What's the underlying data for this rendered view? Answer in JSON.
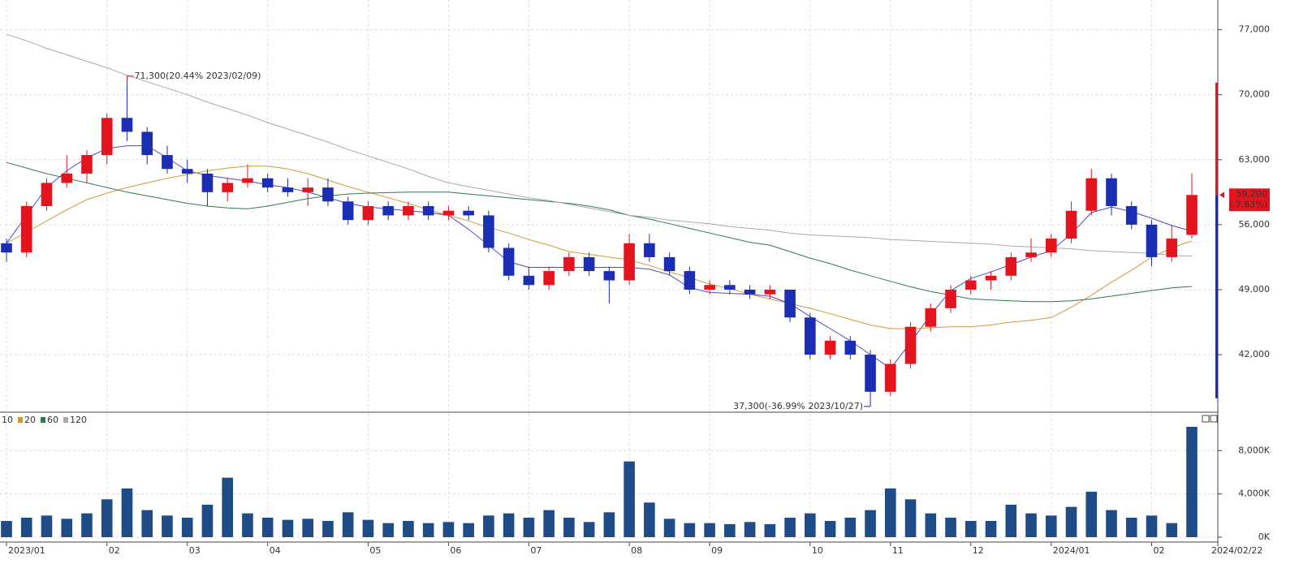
{
  "chart_data": {
    "type": "candlestick",
    "categories": [
      "2023/01",
      null,
      null,
      null,
      null,
      "02",
      null,
      null,
      null,
      "03",
      null,
      null,
      null,
      "04",
      null,
      null,
      null,
      null,
      "05",
      null,
      null,
      null,
      "06",
      null,
      null,
      null,
      "07",
      null,
      null,
      null,
      null,
      "08",
      null,
      null,
      null,
      "09",
      null,
      null,
      null,
      null,
      "10",
      null,
      null,
      null,
      "11",
      null,
      null,
      null,
      "12",
      null,
      null,
      null,
      "2024/01",
      null,
      null,
      null,
      null,
      "02",
      null,
      "2024/02/22"
    ],
    "open": [
      54000,
      53000,
      58000,
      60500,
      61500,
      63500,
      67500,
      66000,
      63500,
      62000,
      61500,
      59500,
      60500,
      61000,
      60000,
      59500,
      60000,
      58500,
      56500,
      58000,
      57000,
      58000,
      57000,
      57500,
      57000,
      53500,
      50500,
      49500,
      51000,
      52500,
      51000,
      50000,
      54000,
      52500,
      51000,
      49000,
      49500,
      49000,
      48500,
      49000,
      46000,
      42000,
      43500,
      42000,
      38000,
      41000,
      45000,
      47000,
      49000,
      50000,
      50500,
      52500,
      53000,
      54500,
      57500,
      61000,
      58000,
      56000,
      52500,
      54900
    ],
    "high": [
      54500,
      58500,
      61000,
      63500,
      64000,
      68000,
      71300,
      66500,
      64500,
      63000,
      62000,
      61000,
      62500,
      61500,
      61000,
      61000,
      61000,
      59000,
      58500,
      58500,
      58500,
      58500,
      58000,
      58000,
      57500,
      54000,
      51500,
      51500,
      53000,
      53000,
      51500,
      55000,
      55000,
      53000,
      51500,
      50000,
      50000,
      49500,
      49500,
      49000,
      46500,
      44000,
      44000,
      42500,
      41500,
      45500,
      47500,
      49500,
      50500,
      51000,
      53000,
      54500,
      55000,
      58500,
      62000,
      61500,
      58500,
      56500,
      56000,
      61500
    ],
    "low": [
      52000,
      52500,
      57500,
      60000,
      60500,
      62500,
      65000,
      62500,
      61500,
      60500,
      58000,
      58500,
      60000,
      59500,
      59000,
      58000,
      58000,
      56000,
      56000,
      56500,
      56500,
      56500,
      56500,
      56500,
      53000,
      50000,
      49000,
      49000,
      50500,
      50500,
      47500,
      49500,
      52000,
      50500,
      48500,
      48500,
      48500,
      48000,
      48000,
      45500,
      41500,
      41500,
      41500,
      37300,
      37500,
      40500,
      44500,
      46500,
      48500,
      49000,
      50000,
      52000,
      52500,
      54000,
      57000,
      57000,
      55500,
      51500,
      52000,
      54500
    ],
    "close": [
      53000,
      58000,
      60500,
      61500,
      63500,
      67500,
      66000,
      63500,
      62000,
      61500,
      59500,
      60500,
      61000,
      60000,
      59500,
      60000,
      58500,
      56500,
      58000,
      57000,
      58000,
      57000,
      57500,
      57000,
      53500,
      50500,
      49500,
      51000,
      52500,
      51000,
      50000,
      54000,
      52500,
      51000,
      49000,
      49500,
      49000,
      48500,
      49000,
      46000,
      42000,
      43500,
      42000,
      38000,
      41000,
      45000,
      47000,
      49000,
      50000,
      50500,
      52500,
      53000,
      54500,
      57500,
      61000,
      58000,
      56000,
      52500,
      54500,
      59200
    ],
    "up_color": "#e4141e",
    "down_color": "#1b2db3",
    "ylim": [
      35800,
      80200
    ],
    "yticks": [
      {
        "value": 42000,
        "label": "42,000"
      },
      {
        "value": 49000,
        "label": "49,000"
      },
      {
        "value": 56000,
        "label": "56,000"
      },
      {
        "value": 63000,
        "label": "63,000"
      },
      {
        "value": 70000,
        "label": "70,000"
      },
      {
        "value": 77000,
        "label": "77,000"
      }
    ],
    "grid": true,
    "series": [
      {
        "name": "10",
        "color": "#4a4ac8",
        "values": [
          54000,
          57000,
          60000,
          61800,
          63200,
          64200,
          64500,
          64500,
          63200,
          61800,
          61300,
          61000,
          60700,
          60300,
          60000,
          59500,
          58900,
          58300,
          57900,
          57700,
          57500,
          57300,
          57000,
          55500,
          53800,
          52000,
          51400,
          51400,
          51400,
          51400,
          51400,
          51400,
          51200,
          50600,
          49200,
          48700,
          48600,
          48500,
          48300,
          47500,
          46100,
          44800,
          43500,
          42000,
          40500,
          43300,
          46300,
          48900,
          50200,
          50900,
          51700,
          52500,
          53200,
          55000,
          57300,
          57900,
          57400,
          56700,
          55900,
          55300
        ]
      },
      {
        "name": "20",
        "color": "#d19a38",
        "values": [
          54000,
          55200,
          56400,
          57600,
          58700,
          59400,
          60000,
          60500,
          61000,
          61400,
          61800,
          62100,
          62300,
          62300,
          62000,
          61500,
          60800,
          60100,
          59500,
          58900,
          58300,
          57600,
          57000,
          56400,
          55700,
          55100,
          54400,
          53800,
          53100,
          52800,
          52500,
          52200,
          51600,
          50900,
          50300,
          49600,
          49100,
          48500,
          48000,
          47500,
          47000,
          46400,
          45800,
          45200,
          44800,
          44800,
          44900,
          45000,
          45000,
          45200,
          45500,
          45700,
          46000,
          47100,
          48400,
          49800,
          51100,
          52500,
          53500,
          54250
        ]
      },
      {
        "name": "60",
        "color": "#2f7a4a",
        "values": [
          62700,
          62100,
          61500,
          61000,
          60500,
          60000,
          59500,
          59100,
          58700,
          58300,
          58000,
          57800,
          57700,
          58000,
          58400,
          58800,
          59100,
          59300,
          59400,
          59450,
          59500,
          59500,
          59500,
          59300,
          59100,
          58900,
          58700,
          58500,
          58300,
          58000,
          57600,
          57000,
          56600,
          56100,
          55600,
          55100,
          54600,
          54100,
          53800,
          53100,
          52400,
          51800,
          51100,
          50500,
          49900,
          49300,
          48800,
          48400,
          48000,
          47900,
          47800,
          47700,
          47700,
          47800,
          48000,
          48300,
          48600,
          48900,
          49200,
          49350
        ]
      },
      {
        "name": "120",
        "color": "#a8a8a8",
        "values": [
          76500,
          75800,
          75000,
          74300,
          73600,
          72900,
          72100,
          71400,
          70700,
          70000,
          69200,
          68500,
          67800,
          67000,
          66300,
          65600,
          64900,
          64100,
          63400,
          62700,
          62000,
          61200,
          60500,
          60100,
          59700,
          59300,
          58900,
          58600,
          58200,
          57800,
          57400,
          57000,
          56800,
          56500,
          56300,
          56100,
          55800,
          55600,
          55400,
          55100,
          54900,
          54800,
          54700,
          54600,
          54400,
          54300,
          54200,
          54100,
          54000,
          53900,
          53700,
          53600,
          53500,
          53400,
          53200,
          53100,
          53000,
          52900,
          52700,
          52600
        ]
      }
    ],
    "annotations": [
      {
        "value": 71300,
        "label": "71,300(20.44% 2023/02/09)",
        "color": "#c8141e"
      },
      {
        "value": 37300,
        "label": "37,300(-36.99% 2023/10/27)",
        "color": "#1b2d8c"
      }
    ],
    "price_tag": {
      "value": 59200,
      "label": "59,200",
      "change": "( 7.83%)",
      "color": "#e4141e"
    },
    "volume": {
      "values": [
        1500,
        1800,
        2000,
        1700,
        2200,
        3500,
        4500,
        2500,
        2000,
        1800,
        3000,
        5500,
        2200,
        1800,
        1600,
        1700,
        1500,
        2300,
        1600,
        1300,
        1500,
        1300,
        1400,
        1300,
        2000,
        2200,
        1800,
        2500,
        1800,
        1400,
        2300,
        7000,
        3200,
        1700,
        1300,
        1300,
        1200,
        1400,
        1200,
        1800,
        2200,
        1500,
        1800,
        2500,
        4500,
        3500,
        2200,
        1800,
        1500,
        1500,
        3000,
        2200,
        2000,
        2800,
        4200,
        2500,
        1800,
        2000,
        1300,
        10200
      ],
      "color": "#1f4b86",
      "ylim": [
        0,
        11400
      ],
      "yticks": [
        {
          "value": 0,
          "label": "0K"
        },
        {
          "value": 4000,
          "label": "4,000K"
        },
        {
          "value": 8000,
          "label": "8,000K"
        }
      ]
    }
  }
}
